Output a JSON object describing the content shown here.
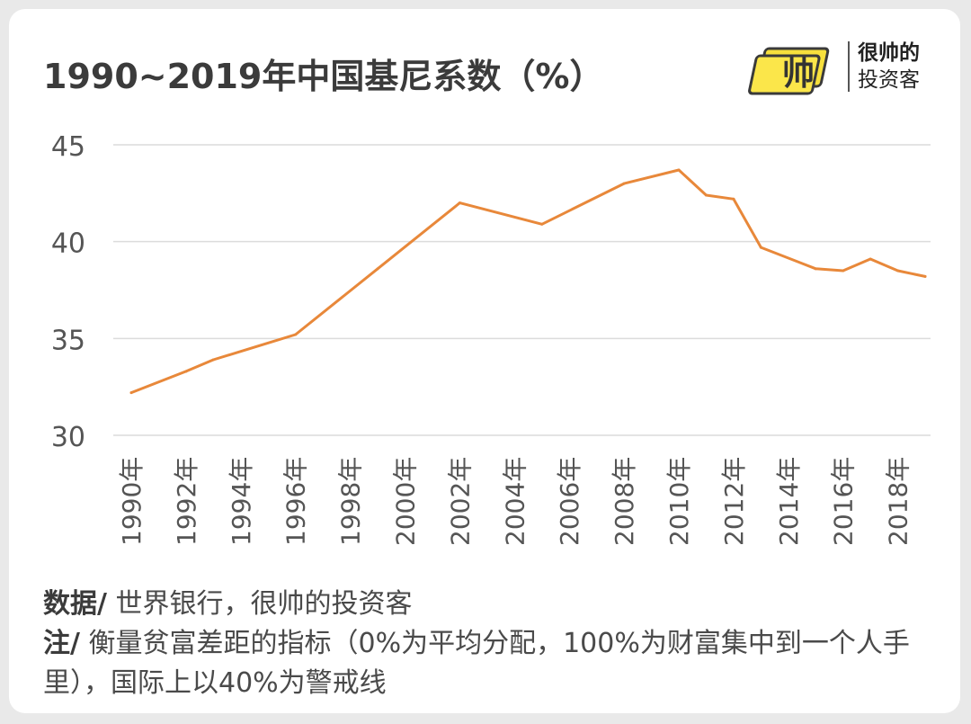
{
  "title": "1990~2019年中国基尼系数（%）",
  "logo": {
    "mark_text": "帅",
    "line1": "很帅的",
    "line2": "投资客",
    "color": "#f7e03c"
  },
  "footer": {
    "source_label": "数据/",
    "source_text": " 世界银行，很帅的投资客",
    "note_label": "注/",
    "note_text": " 衡量贫富差距的指标（0%为平均分配，100%为财富集中到一个人手里），国际上以40%为警戒线"
  },
  "chart_data": {
    "type": "line",
    "title": "1990~2019年中国基尼系数（%）",
    "xlabel": "",
    "ylabel": "",
    "ylim": [
      30,
      45
    ],
    "yticks": [
      30,
      35,
      40,
      45
    ],
    "grid": true,
    "line_color": "#e8883a",
    "grid_color": "#dcdcdc",
    "x_tick_labels": [
      "1990年",
      "1992年",
      "1994年",
      "1996年",
      "1998年",
      "2000年",
      "2002年",
      "2004年",
      "2006年",
      "2008年",
      "2010年",
      "2012年",
      "2014年",
      "2016年",
      "2018年"
    ],
    "series": [
      {
        "x": [
          1990,
          1992,
          1993,
          1996,
          1999,
          2002,
          2005,
          2008,
          2010,
          2011,
          2012,
          2013,
          2015,
          2016,
          2017,
          2018,
          2019
        ],
        "y": [
          32.2,
          33.3,
          33.9,
          35.2,
          38.6,
          42.0,
          40.9,
          43.0,
          43.7,
          42.4,
          42.2,
          39.7,
          38.6,
          38.5,
          39.1,
          38.5,
          38.2
        ]
      }
    ]
  }
}
